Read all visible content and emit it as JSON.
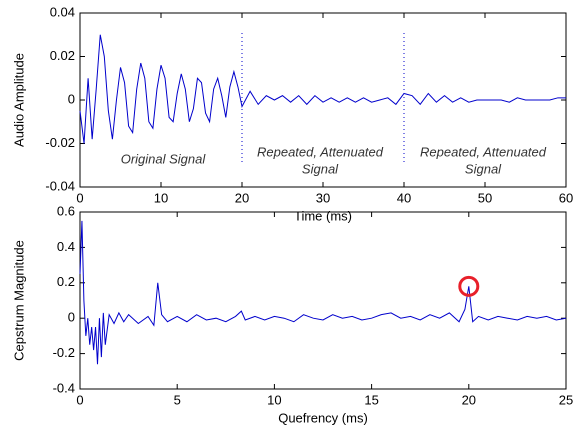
{
  "chart_data": [
    {
      "type": "line",
      "xlabel": "Time (ms)",
      "ylabel": "Audio Amplitude",
      "xlim": [
        0,
        60
      ],
      "ylim": [
        -0.04,
        0.04
      ],
      "xticks": [
        0,
        10,
        20,
        30,
        40,
        50,
        60
      ],
      "yticks": [
        -0.04,
        -0.02,
        0,
        0.02,
        0.04
      ],
      "vlines": [
        20,
        40
      ],
      "annotations": [
        [
          "Original Signal"
        ],
        [
          "Repeated, Attenuated",
          "Signal"
        ],
        [
          "Repeated, Attenuated",
          "Signal"
        ]
      ],
      "series": [
        {
          "color": "#0000cc",
          "x": [
            0,
            0.5,
            1,
            1.5,
            2,
            2.5,
            3,
            3.5,
            4,
            4.5,
            5,
            5.5,
            6,
            6.5,
            7,
            7.5,
            8,
            8.5,
            9,
            9.5,
            10,
            10.5,
            11,
            11.5,
            12,
            12.5,
            13,
            13.5,
            14,
            14.5,
            15,
            15.5,
            16,
            16.5,
            17,
            17.5,
            18,
            18.5,
            19,
            19.5,
            20,
            21,
            22,
            23,
            24,
            25,
            26,
            27,
            28,
            29,
            30,
            31,
            32,
            33,
            34,
            35,
            36,
            37,
            38,
            39,
            40,
            41,
            42,
            43,
            44,
            45,
            46,
            47,
            48,
            49,
            50,
            51,
            52,
            53,
            54,
            55,
            56,
            57,
            58,
            59,
            60
          ],
          "values": [
            -0.005,
            -0.02,
            0.01,
            -0.018,
            0.005,
            0.03,
            0.02,
            -0.005,
            -0.018,
            0.0,
            0.015,
            0.008,
            -0.012,
            -0.015,
            0.005,
            0.017,
            0.01,
            -0.01,
            -0.013,
            0.005,
            0.016,
            0.01,
            -0.008,
            -0.01,
            0.003,
            0.012,
            0.005,
            -0.01,
            -0.004,
            0.01,
            0.008,
            -0.006,
            -0.01,
            0.005,
            0.01,
            0.002,
            -0.008,
            0.006,
            0.013,
            0.006,
            -0.003,
            0.004,
            -0.002,
            0.002,
            0.0,
            0.002,
            -0.001,
            0.002,
            -0.002,
            0.002,
            -0.001,
            0.001,
            -0.001,
            0.001,
            -0.001,
            0.001,
            -0.001,
            0.0,
            0.001,
            -0.002,
            0.003,
            0.002,
            -0.002,
            0.003,
            -0.001,
            0.002,
            -0.001,
            0.001,
            -0.001,
            0.0,
            0.0,
            0.0,
            0.0,
            -0.001,
            0.001,
            0.0,
            0.0,
            0.0,
            0.0,
            0.001,
            0.001
          ]
        }
      ]
    },
    {
      "type": "line",
      "xlabel": "Quefrency (ms)",
      "ylabel": "Cepstrum Magnitude",
      "xlim": [
        0,
        25
      ],
      "ylim": [
        -0.4,
        0.6
      ],
      "xticks": [
        0,
        5,
        10,
        15,
        20,
        25
      ],
      "yticks": [
        -0.4,
        -0.2,
        0,
        0.2,
        0.4,
        0.6
      ],
      "highlight": {
        "x": 20,
        "y": 0.18
      },
      "series": [
        {
          "color": "#0000cc",
          "x": [
            0,
            0.1,
            0.2,
            0.3,
            0.4,
            0.5,
            0.6,
            0.7,
            0.8,
            0.9,
            1.0,
            1.1,
            1.2,
            1.3,
            1.5,
            1.75,
            2,
            2.25,
            2.5,
            3,
            3.5,
            3.8,
            4.0,
            4.2,
            4.5,
            5,
            5.5,
            6,
            6.5,
            7,
            7.5,
            8,
            8.3,
            8.5,
            9,
            9.5,
            10,
            10.5,
            11,
            11.5,
            12,
            12.5,
            13,
            13.5,
            14,
            14.5,
            15,
            15.5,
            16,
            16.5,
            17,
            17.5,
            18,
            18.5,
            19,
            19.5,
            19.8,
            20,
            20.2,
            20.5,
            21,
            21.5,
            22,
            22.5,
            23,
            23.5,
            24,
            24.5,
            25
          ],
          "values": [
            0.25,
            0.55,
            0.1,
            -0.1,
            0.0,
            -0.15,
            -0.05,
            -0.18,
            -0.05,
            -0.26,
            0.0,
            -0.22,
            0.03,
            -0.15,
            0.02,
            -0.03,
            0.03,
            -0.02,
            0.02,
            -0.03,
            0.01,
            -0.04,
            0.2,
            0.02,
            -0.02,
            0.01,
            -0.02,
            0.02,
            -0.01,
            0.0,
            -0.02,
            0.01,
            0.04,
            -0.01,
            0.01,
            -0.01,
            0.01,
            0.0,
            -0.02,
            0.02,
            0.0,
            -0.01,
            0.02,
            0.0,
            0.01,
            -0.01,
            0.0,
            0.02,
            0.03,
            0.0,
            0.01,
            -0.01,
            0.02,
            0.0,
            0.03,
            -0.02,
            0.05,
            0.18,
            -0.02,
            0.01,
            -0.01,
            0.01,
            0.0,
            -0.01,
            0.01,
            0.0,
            0.01,
            -0.01,
            0.0
          ]
        }
      ]
    }
  ]
}
